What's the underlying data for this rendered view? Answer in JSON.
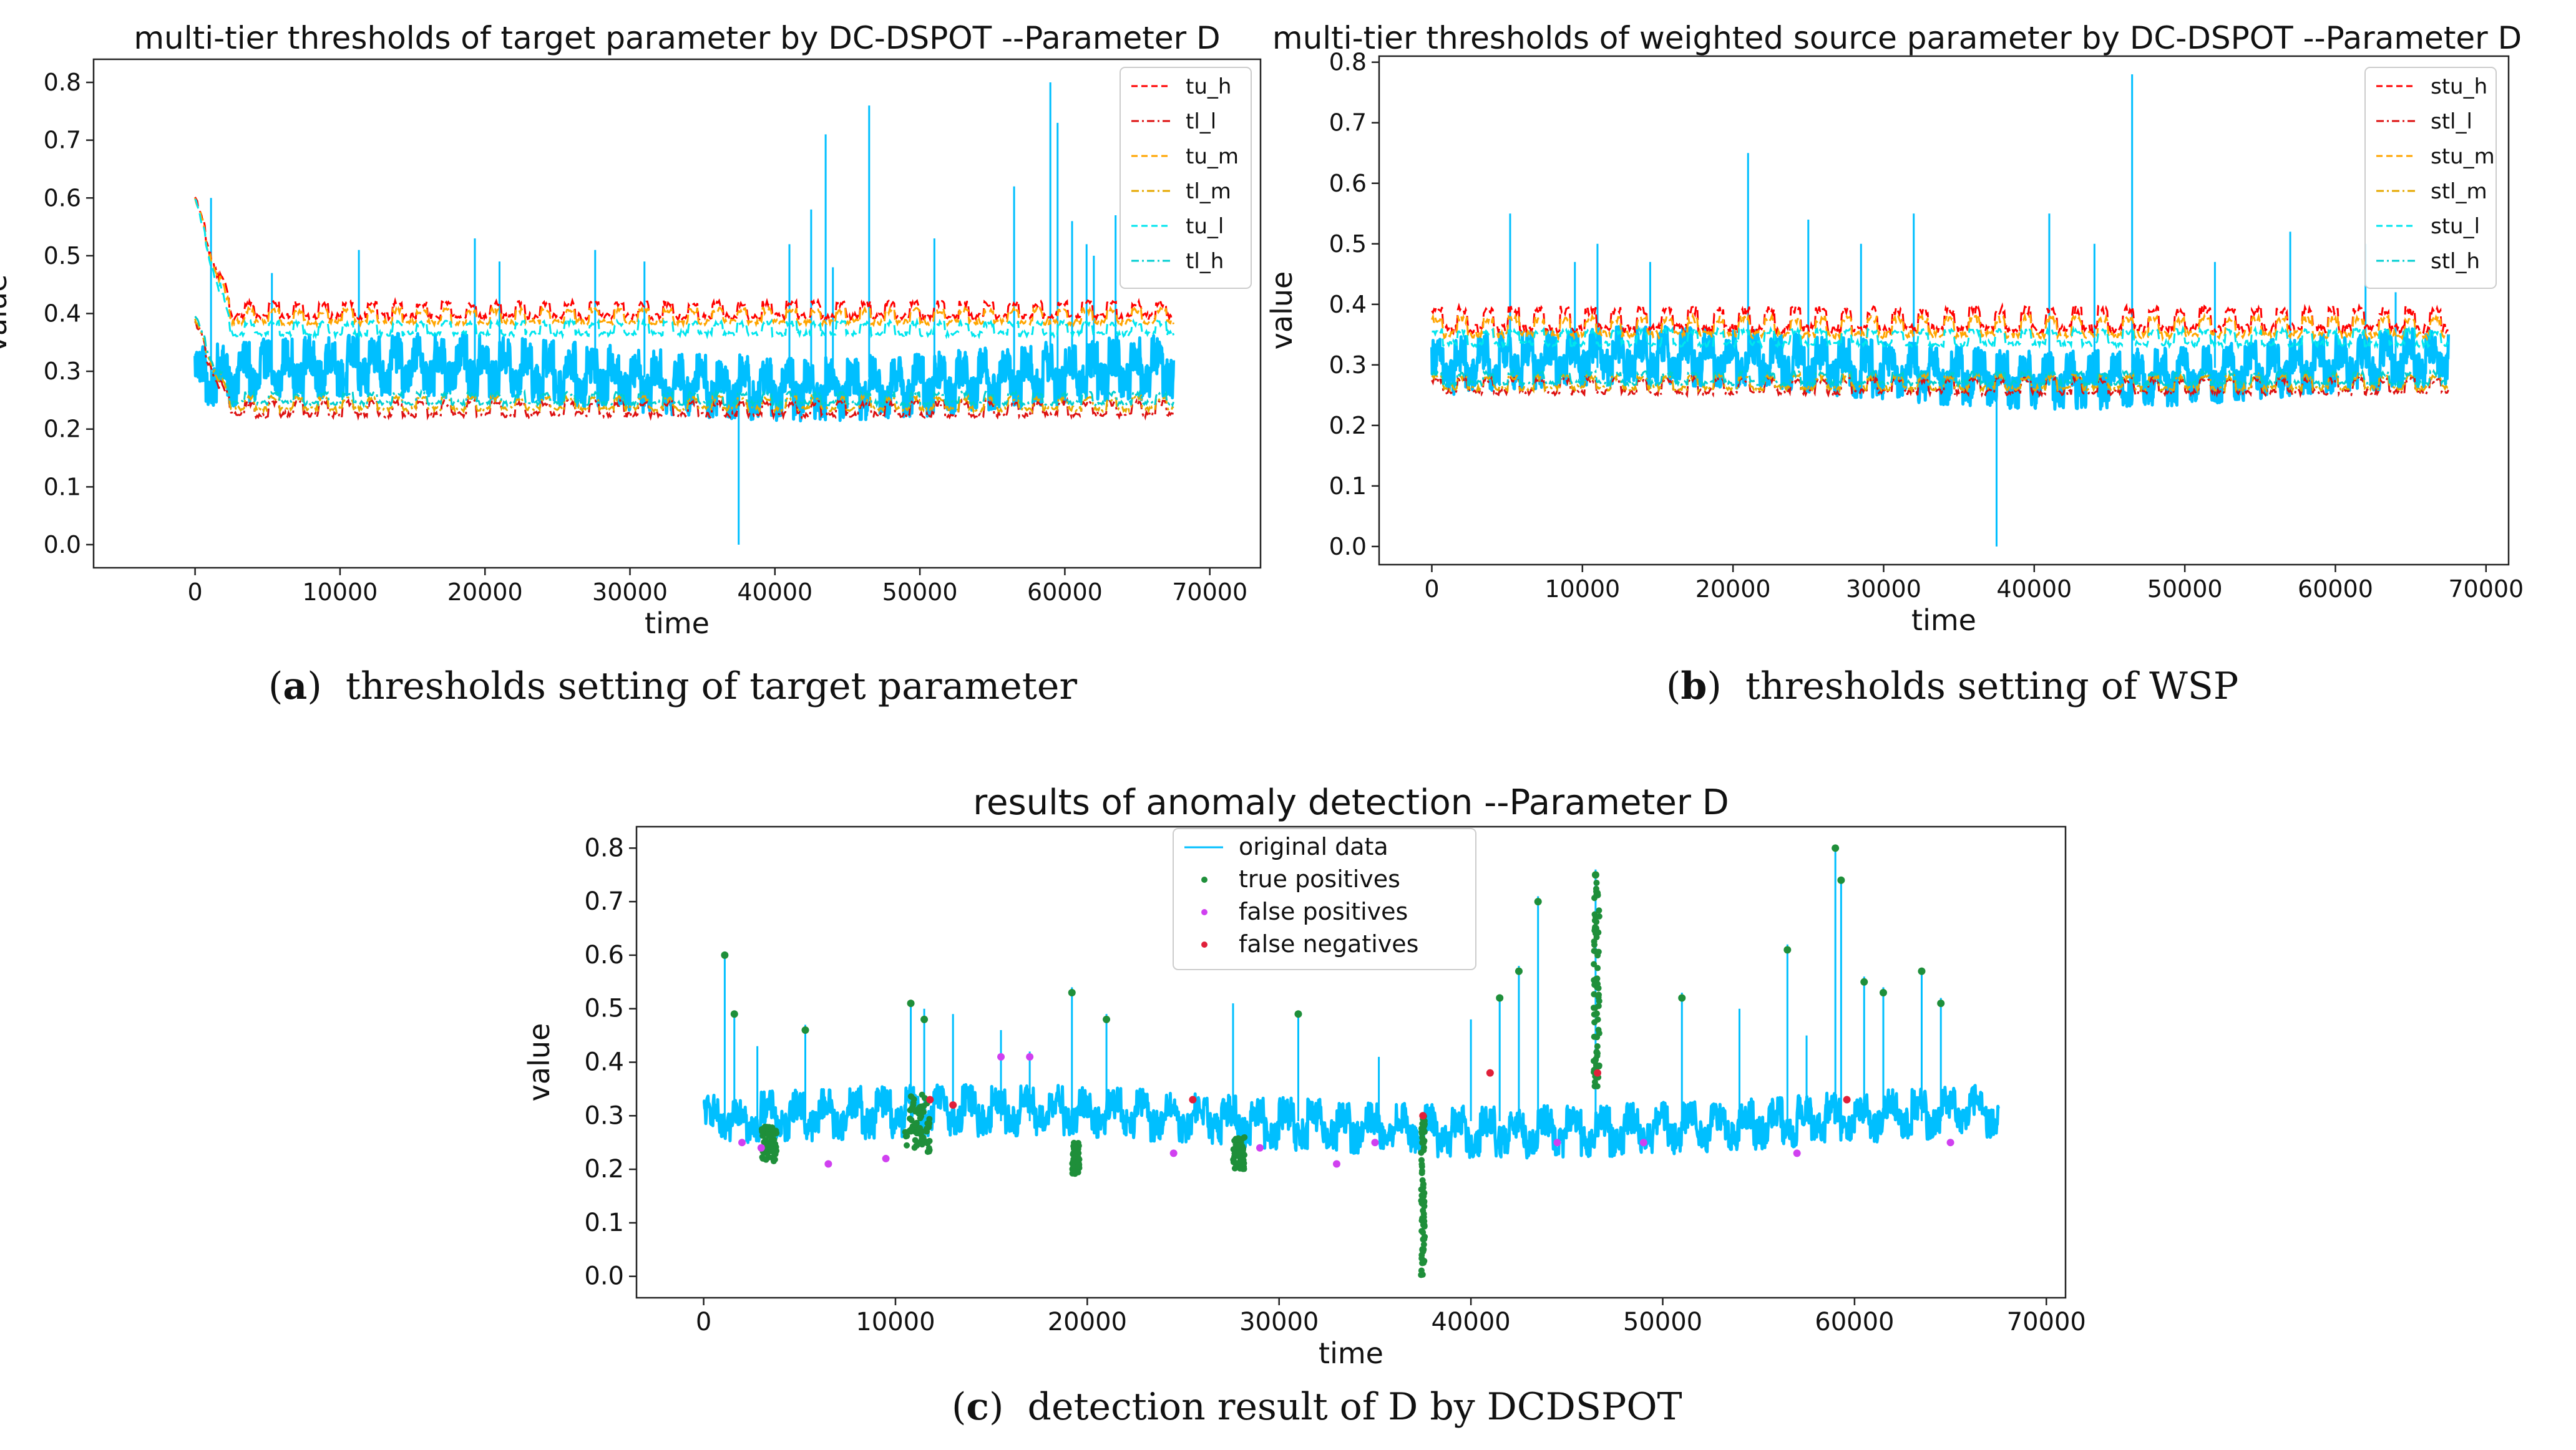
{
  "chart_data": [
    {
      "id": "a",
      "type": "line",
      "title": "multi-tier thresholds of target parameter by DC-DSPOT --Parameter D",
      "xlabel": "time",
      "ylabel": "value",
      "xlim": [
        -7000,
        73500
      ],
      "ylim": [
        -0.04,
        0.84
      ],
      "xticks": [
        0,
        10000,
        20000,
        30000,
        40000,
        50000,
        60000,
        70000
      ],
      "xtick_labels": [
        "0",
        "10000",
        "20000",
        "30000",
        "40000",
        "50000",
        "60000",
        "70000"
      ],
      "yticks": [
        0.0,
        0.1,
        0.2,
        0.3,
        0.4,
        0.5,
        0.6,
        0.7,
        0.8
      ],
      "ytick_labels": [
        "0.0",
        "0.1",
        "0.2",
        "0.3",
        "0.4",
        "0.5",
        "0.6",
        "0.7",
        "0.8"
      ],
      "legend_position": "top-right",
      "series": [
        {
          "name": "tu_h",
          "color": "#ff0000",
          "dash": "dashed",
          "base": 0.395,
          "amp": 0.022
        },
        {
          "name": "tl_l",
          "color": "#dd1111",
          "dash": "dashdot",
          "base": 0.225,
          "amp": 0.02
        },
        {
          "name": "tu_m",
          "color": "#ffa500",
          "dash": "dashed",
          "base": 0.385,
          "amp": 0.02
        },
        {
          "name": "tl_m",
          "color": "#e6a800",
          "dash": "dashdot",
          "base": 0.235,
          "amp": 0.018
        },
        {
          "name": "tu_l",
          "color": "#00e5ee",
          "dash": "dashed",
          "base": 0.365,
          "amp": 0.018
        },
        {
          "name": "tl_h",
          "color": "#00ced1",
          "dash": "dashdot",
          "base": 0.245,
          "amp": 0.016
        }
      ],
      "data_series": {
        "name": "target parameter D",
        "color": "#00bfff",
        "mean": 0.29,
        "spread": 0.04,
        "xmax": 67500
      },
      "spikes": [
        [
          1100,
          0.6
        ],
        [
          5300,
          0.47
        ],
        [
          11300,
          0.51
        ],
        [
          19300,
          0.53
        ],
        [
          21000,
          0.49
        ],
        [
          27600,
          0.51
        ],
        [
          31000,
          0.49
        ],
        [
          37500,
          0.0
        ],
        [
          41000,
          0.52
        ],
        [
          42500,
          0.58
        ],
        [
          43500,
          0.71
        ],
        [
          44000,
          0.48
        ],
        [
          46500,
          0.76
        ],
        [
          51000,
          0.53
        ],
        [
          56500,
          0.62
        ],
        [
          59000,
          0.8
        ],
        [
          59500,
          0.73
        ],
        [
          60500,
          0.56
        ],
        [
          61500,
          0.52
        ],
        [
          62000,
          0.5
        ],
        [
          63500,
          0.57
        ]
      ]
    },
    {
      "id": "b",
      "type": "line",
      "title": "multi-tier thresholds of weighted source parameter by DC-DSPOT --Parameter D",
      "xlabel": "time",
      "ylabel": "value",
      "xlim": [
        -3500,
        71500
      ],
      "ylim": [
        -0.03,
        0.81
      ],
      "xticks": [
        0,
        10000,
        20000,
        30000,
        40000,
        50000,
        60000,
        70000
      ],
      "xtick_labels": [
        "0",
        "10000",
        "20000",
        "30000",
        "40000",
        "50000",
        "60000",
        "70000"
      ],
      "yticks": [
        0.0,
        0.1,
        0.2,
        0.3,
        0.4,
        0.5,
        0.6,
        0.7,
        0.8
      ],
      "ytick_labels": [
        "0.0",
        "0.1",
        "0.2",
        "0.3",
        "0.4",
        "0.5",
        "0.6",
        "0.7",
        "0.8"
      ],
      "legend_position": "top-right",
      "series": [
        {
          "name": "stu_h",
          "color": "#ff0000",
          "dash": "dashed",
          "base": 0.36,
          "amp": 0.03
        },
        {
          "name": "stl_l",
          "color": "#dd1111",
          "dash": "dashdot",
          "base": 0.255,
          "amp": 0.02
        },
        {
          "name": "stu_m",
          "color": "#ffa500",
          "dash": "dashed",
          "base": 0.35,
          "amp": 0.025
        },
        {
          "name": "stl_m",
          "color": "#e6a800",
          "dash": "dashdot",
          "base": 0.262,
          "amp": 0.018
        },
        {
          "name": "stu_l",
          "color": "#00e5ee",
          "dash": "dashed",
          "base": 0.335,
          "amp": 0.02
        },
        {
          "name": "stl_h",
          "color": "#00ced1",
          "dash": "dashdot",
          "base": 0.27,
          "amp": 0.016
        }
      ],
      "data_series": {
        "name": "weighted source parameter",
        "color": "#00bfff",
        "mean": 0.295,
        "spread": 0.035,
        "xmax": 67500
      },
      "spikes": [
        [
          5200,
          0.55
        ],
        [
          9500,
          0.47
        ],
        [
          11000,
          0.5
        ],
        [
          14500,
          0.47
        ],
        [
          21000,
          0.65
        ],
        [
          25000,
          0.54
        ],
        [
          28500,
          0.5
        ],
        [
          32000,
          0.55
        ],
        [
          37500,
          0.0
        ],
        [
          41000,
          0.55
        ],
        [
          44000,
          0.5
        ],
        [
          46500,
          0.78
        ],
        [
          52000,
          0.47
        ],
        [
          57000,
          0.52
        ],
        [
          62000,
          0.5
        ],
        [
          64000,
          0.42
        ]
      ]
    },
    {
      "id": "c",
      "type": "scatter",
      "title": "results of anomaly detection --Parameter D",
      "xlabel": "time",
      "ylabel": "value",
      "xlim": [
        -3500,
        71000
      ],
      "ylim": [
        -0.04,
        0.84
      ],
      "xticks": [
        0,
        10000,
        20000,
        30000,
        40000,
        50000,
        60000,
        70000
      ],
      "xtick_labels": [
        "0",
        "10000",
        "20000",
        "30000",
        "40000",
        "50000",
        "60000",
        "70000"
      ],
      "yticks": [
        0.0,
        0.1,
        0.2,
        0.3,
        0.4,
        0.5,
        0.6,
        0.7,
        0.8
      ],
      "ytick_labels": [
        "0.0",
        "0.1",
        "0.2",
        "0.3",
        "0.4",
        "0.5",
        "0.6",
        "0.7",
        "0.8"
      ],
      "legend_position": "top-center",
      "legend": [
        {
          "name": "original data",
          "kind": "line",
          "color": "#00bfff"
        },
        {
          "name": "true positives",
          "kind": "dot",
          "color": "#1f8f3a"
        },
        {
          "name": "false positives",
          "kind": "dot",
          "color": "#d040f0"
        },
        {
          "name": "false negatives",
          "kind": "dot",
          "color": "#e0203a"
        }
      ],
      "data_series": {
        "name": "original data",
        "color": "#00bfff",
        "mean": 0.29,
        "spread": 0.035,
        "xmax": 67500
      },
      "spikes": [
        [
          1100,
          0.6
        ],
        [
          1600,
          0.49
        ],
        [
          2800,
          0.43
        ],
        [
          5300,
          0.47
        ],
        [
          10800,
          0.51
        ],
        [
          11500,
          0.5
        ],
        [
          13000,
          0.49
        ],
        [
          15500,
          0.46
        ],
        [
          17000,
          0.42
        ],
        [
          19200,
          0.54
        ],
        [
          21000,
          0.49
        ],
        [
          27600,
          0.51
        ],
        [
          31000,
          0.49
        ],
        [
          35200,
          0.41
        ],
        [
          40000,
          0.48
        ],
        [
          41500,
          0.52
        ],
        [
          42500,
          0.58
        ],
        [
          43500,
          0.71
        ],
        [
          46500,
          0.76
        ],
        [
          51000,
          0.53
        ],
        [
          54000,
          0.5
        ],
        [
          56500,
          0.62
        ],
        [
          57500,
          0.45
        ],
        [
          59000,
          0.8
        ],
        [
          59300,
          0.74
        ],
        [
          60500,
          0.56
        ],
        [
          61500,
          0.54
        ],
        [
          63500,
          0.57
        ],
        [
          64500,
          0.52
        ]
      ],
      "true_positives": [
        [
          1100,
          0.6
        ],
        [
          1600,
          0.49
        ],
        [
          5300,
          0.46
        ],
        [
          10800,
          0.51
        ],
        [
          11500,
          0.48
        ],
        [
          19200,
          0.53
        ],
        [
          21000,
          0.48
        ],
        [
          31000,
          0.49
        ],
        [
          37500,
          0.05
        ],
        [
          37500,
          0.15
        ],
        [
          37500,
          0.25
        ],
        [
          41500,
          0.52
        ],
        [
          42500,
          0.57
        ],
        [
          43500,
          0.7
        ],
        [
          46500,
          0.75
        ],
        [
          46500,
          0.65
        ],
        [
          46500,
          0.55
        ],
        [
          51000,
          0.52
        ],
        [
          56500,
          0.61
        ],
        [
          59000,
          0.8
        ],
        [
          59300,
          0.74
        ],
        [
          60500,
          0.55
        ],
        [
          61500,
          0.53
        ],
        [
          63500,
          0.57
        ],
        [
          64500,
          0.51
        ]
      ],
      "false_positives": [
        [
          2000,
          0.25
        ],
        [
          3000,
          0.24
        ],
        [
          6500,
          0.21
        ],
        [
          9500,
          0.22
        ],
        [
          15500,
          0.41
        ],
        [
          17000,
          0.41
        ],
        [
          24500,
          0.23
        ],
        [
          29000,
          0.24
        ],
        [
          33000,
          0.21
        ],
        [
          35000,
          0.25
        ],
        [
          44500,
          0.25
        ],
        [
          49000,
          0.25
        ],
        [
          57000,
          0.23
        ],
        [
          65000,
          0.25
        ]
      ],
      "false_negatives": [
        [
          11800,
          0.33
        ],
        [
          13000,
          0.32
        ],
        [
          25500,
          0.33
        ],
        [
          37500,
          0.3
        ],
        [
          41000,
          0.38
        ],
        [
          46600,
          0.38
        ],
        [
          59600,
          0.33
        ]
      ],
      "tp_clusters": [
        [
          3000,
          3800,
          0.21,
          0.28
        ],
        [
          10500,
          11800,
          0.23,
          0.34
        ],
        [
          19200,
          19600,
          0.19,
          0.25
        ],
        [
          27600,
          28200,
          0.2,
          0.26
        ],
        [
          37400,
          37600,
          0.0,
          0.3
        ],
        [
          46400,
          46700,
          0.35,
          0.76
        ]
      ]
    }
  ],
  "captions": {
    "a_label": "a",
    "a_text": "thresholds setting of target parameter",
    "b_label": "b",
    "b_text": "thresholds setting of WSP",
    "c_label": "c",
    "c_text": "detection result of D by DCDSPOT"
  }
}
